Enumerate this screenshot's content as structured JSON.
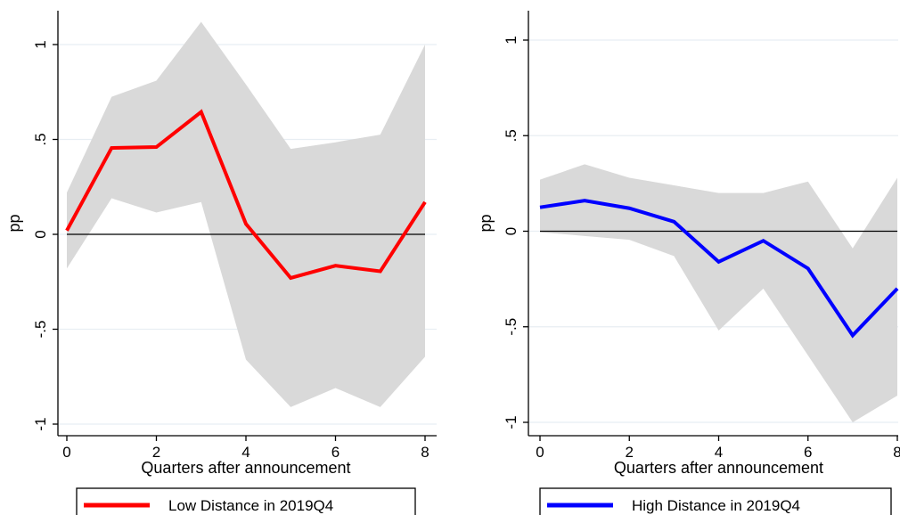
{
  "chart_data": [
    {
      "type": "line",
      "title": "",
      "xlabel": "Quarters after announcement",
      "ylabel": "pp",
      "x": [
        0,
        1,
        2,
        3,
        4,
        5,
        6,
        7,
        8
      ],
      "x_ticks": [
        "0",
        "2",
        "4",
        "6",
        "8"
      ],
      "y_ticks": [
        "-1",
        "-.5",
        "0",
        ".5",
        "1"
      ],
      "xlim": [
        0,
        8
      ],
      "ylim": [
        -1,
        1
      ],
      "grid": true,
      "legend_position": "bottom",
      "series": [
        {
          "name": "Low Distance in 2019Q4",
          "color": "#ff0000",
          "values": [
            0.02,
            0.455,
            0.46,
            0.645,
            0.055,
            -0.23,
            -0.165,
            -0.195,
            0.17
          ],
          "ci_lower": [
            -0.18,
            0.19,
            0.115,
            0.17,
            -0.66,
            -0.91,
            -0.81,
            -0.91,
            -0.645
          ],
          "ci_upper": [
            0.22,
            0.725,
            0.81,
            1.12,
            0.79,
            0.45,
            0.485,
            0.525,
            1.0
          ]
        }
      ],
      "reference_line": 0,
      "band_color": "#d9d9d9"
    },
    {
      "type": "line",
      "title": "",
      "xlabel": "Quarters after announcement",
      "ylabel": "pp",
      "x": [
        0,
        1,
        2,
        3,
        4,
        5,
        6,
        7,
        8
      ],
      "x_ticks": [
        "0",
        "2",
        "4",
        "6",
        "8"
      ],
      "y_ticks": [
        "-1",
        "-.5",
        "0",
        ".5",
        "1"
      ],
      "xlim": [
        0,
        8
      ],
      "ylim": [
        -1,
        1
      ],
      "grid": true,
      "legend_position": "bottom",
      "series": [
        {
          "name": "High Distance in 2019Q4",
          "color": "#0000ff",
          "values": [
            0.125,
            0.16,
            0.12,
            0.05,
            -0.16,
            -0.05,
            -0.195,
            -0.545,
            -0.3
          ],
          "ci_lower": [
            -0.005,
            -0.025,
            -0.045,
            -0.13,
            -0.52,
            -0.3,
            -0.65,
            -1.0,
            -0.86
          ],
          "ci_upper": [
            0.27,
            0.35,
            0.28,
            0.24,
            0.2,
            0.2,
            0.26,
            -0.09,
            0.28
          ]
        }
      ],
      "reference_line": 0,
      "band_color": "#d9d9d9"
    }
  ]
}
